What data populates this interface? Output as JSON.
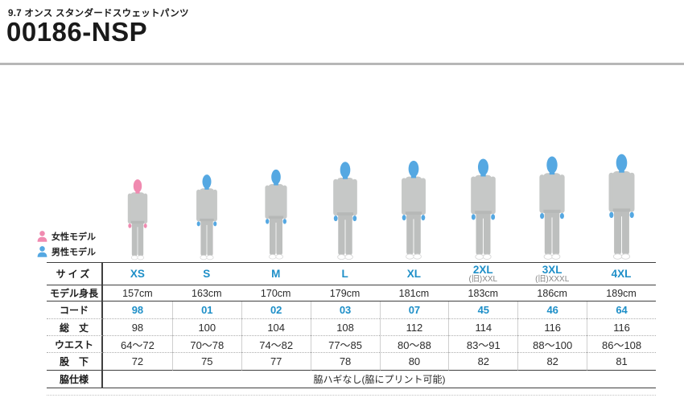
{
  "header": {
    "subtitle": "9.7 オンス スタンダードスウェットパンツ",
    "product_code": "00186-NSP"
  },
  "colors": {
    "accent_blue": "#1e8fc8",
    "female_pink": "#f08ab0",
    "male_blue": "#55a8e2",
    "shirt_gray": "#c6c8c7",
    "hem_gray": "#b6b8b7",
    "pants_gray": "#bdbfbe",
    "shoe_white": "#ffffff",
    "shoe_outline": "#d9d9d9"
  },
  "legend": [
    {
      "icon": "female-model-icon",
      "label": "女性モデル"
    },
    {
      "icon": "male-model-icon",
      "label": "男性モデル"
    }
  ],
  "figures": [
    {
      "size": "XS",
      "gender": "female",
      "height_cm": 157
    },
    {
      "size": "S",
      "gender": "male",
      "height_cm": 163
    },
    {
      "size": "M",
      "gender": "male",
      "height_cm": 170
    },
    {
      "size": "L",
      "gender": "male",
      "height_cm": 179
    },
    {
      "size": "XL",
      "gender": "male",
      "height_cm": 181
    },
    {
      "size": "2XL",
      "gender": "male",
      "height_cm": 183
    },
    {
      "size": "3XL",
      "gender": "male",
      "height_cm": 186
    },
    {
      "size": "4XL",
      "gender": "male",
      "height_cm": 189
    }
  ],
  "size_table": {
    "row_headers": {
      "size": "サイズ",
      "model_height": "モデル身長",
      "code": "コード",
      "total_length": "総　丈",
      "waist": "ウエスト",
      "inseam": "股　下",
      "side_spec": "脇仕様"
    },
    "columns": [
      {
        "size": "XS",
        "old_size": "",
        "model_height": "157cm",
        "code": "98",
        "total_length": "98",
        "waist": "64〜72",
        "inseam": "72"
      },
      {
        "size": "S",
        "old_size": "",
        "model_height": "163cm",
        "code": "01",
        "total_length": "100",
        "waist": "70〜78",
        "inseam": "75"
      },
      {
        "size": "M",
        "old_size": "",
        "model_height": "170cm",
        "code": "02",
        "total_length": "104",
        "waist": "74〜82",
        "inseam": "77"
      },
      {
        "size": "L",
        "old_size": "",
        "model_height": "179cm",
        "code": "03",
        "total_length": "108",
        "waist": "77〜85",
        "inseam": "78"
      },
      {
        "size": "XL",
        "old_size": "",
        "model_height": "181cm",
        "code": "07",
        "total_length": "112",
        "waist": "80〜88",
        "inseam": "80"
      },
      {
        "size": "2XL",
        "old_size": "(旧)XXL",
        "model_height": "183cm",
        "code": "45",
        "total_length": "114",
        "waist": "83〜91",
        "inseam": "82"
      },
      {
        "size": "3XL",
        "old_size": "(旧)XXXL",
        "model_height": "186cm",
        "code": "46",
        "total_length": "116",
        "waist": "88〜100",
        "inseam": "82"
      },
      {
        "size": "4XL",
        "old_size": "",
        "model_height": "189cm",
        "code": "64",
        "total_length": "116",
        "waist": "86〜108",
        "inseam": "81"
      }
    ],
    "side_spec_value": "脇ハギなし(脇にプリント可能)"
  }
}
